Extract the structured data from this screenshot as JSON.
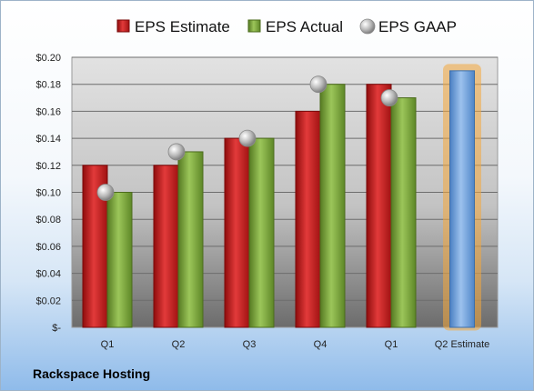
{
  "company": "Rackspace Hosting",
  "chart_data": {
    "type": "bar",
    "categories": [
      "Q1",
      "Q2",
      "Q3",
      "Q4",
      "Q1",
      "Q2 Estimate"
    ],
    "series": [
      {
        "name": "EPS Estimate",
        "values": [
          0.12,
          0.12,
          0.14,
          0.16,
          0.18,
          null
        ],
        "color": "#cc1f1f"
      },
      {
        "name": "EPS Actual",
        "values": [
          0.1,
          0.13,
          0.14,
          0.18,
          0.17,
          null
        ],
        "color": "#7aa63a"
      },
      {
        "name": "EPS GAAP",
        "values": [
          0.1,
          0.13,
          0.14,
          0.18,
          0.17,
          null
        ],
        "color": "#c8c8c8"
      }
    ],
    "estimate_bar": {
      "category": "Q2 Estimate",
      "value": 0.19,
      "color": "#6f9fd8",
      "glow": "#f4a73c"
    },
    "y_tick_labels": [
      "$-",
      "$0.02",
      "$0.04",
      "$0.06",
      "$0.08",
      "$0.10",
      "$0.12",
      "$0.14",
      "$0.16",
      "$0.18",
      "$0.20"
    ],
    "ylim": [
      0,
      0.2
    ],
    "grid": true,
    "legend_position": "top"
  }
}
